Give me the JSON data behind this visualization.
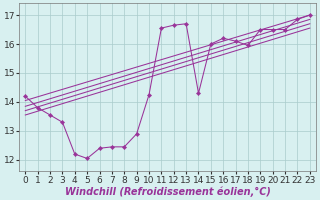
{
  "bg_color": "#d8f0f0",
  "line_color": "#993399",
  "grid_color": "#aacccc",
  "xlabel": "Windchill (Refroidissement éolien,°C)",
  "ylabel_ticks": [
    12,
    13,
    14,
    15,
    16,
    17
  ],
  "xlim": [
    -0.5,
    23.5
  ],
  "ylim": [
    11.6,
    17.4
  ],
  "xticks": [
    0,
    1,
    2,
    3,
    4,
    5,
    6,
    7,
    8,
    9,
    10,
    11,
    12,
    13,
    14,
    15,
    16,
    17,
    18,
    19,
    20,
    21,
    22,
    23
  ],
  "fontsize_label": 7.0,
  "fontsize_tick": 6.5,
  "main_series": [
    14.2,
    13.8,
    13.55,
    13.3,
    12.2,
    12.05,
    12.4,
    12.45,
    12.45,
    12.9,
    14.25,
    16.55,
    16.65,
    16.7,
    14.3,
    16.0,
    16.2,
    16.1,
    15.95,
    16.5,
    16.5,
    16.5,
    16.85,
    17.0
  ],
  "trend_lines": [
    {
      "x0": 0,
      "y0": 14.05,
      "x1": 23,
      "y1": 17.0
    },
    {
      "x0": 0,
      "y0": 13.85,
      "x1": 23,
      "y1": 16.85
    },
    {
      "x0": 0,
      "y0": 13.7,
      "x1": 23,
      "y1": 16.7
    },
    {
      "x0": 0,
      "y0": 13.55,
      "x1": 23,
      "y1": 16.55
    }
  ]
}
